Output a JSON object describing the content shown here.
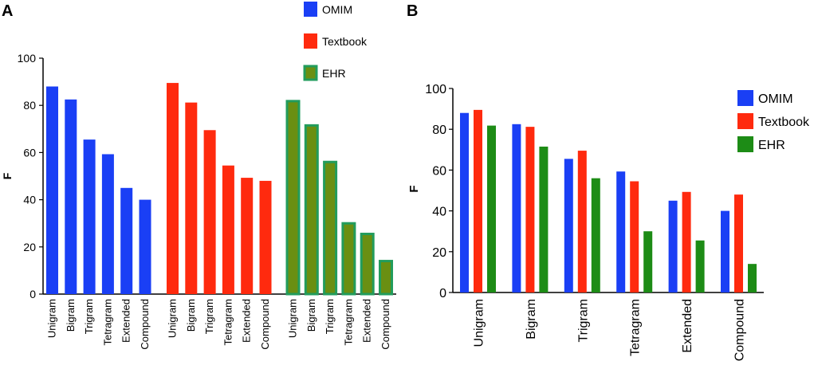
{
  "panels": {
    "a": "A",
    "b": "B"
  },
  "chart_data": [
    {
      "type": "bar",
      "panel": "A",
      "ylabel": "F",
      "ylim": [
        0,
        100
      ],
      "yticks": [
        0,
        20,
        40,
        60,
        80,
        100
      ],
      "categories": [
        "Unigram",
        "Bigram",
        "Trigram",
        "Tetragram",
        "Extended",
        "Compound"
      ],
      "series": [
        {
          "name": "OMIM",
          "color": "#1a3ff5",
          "values": [
            88,
            82.5,
            65.5,
            59.3,
            45,
            40
          ]
        },
        {
          "name": "Textbook",
          "color": "#ff2a0e",
          "values": [
            89.5,
            81.2,
            69.5,
            54.5,
            49.3,
            48
          ]
        },
        {
          "name": "EHR",
          "color": "#6a8f12",
          "border": "#229c5c",
          "values": [
            81.8,
            71.5,
            56,
            30,
            25.5,
            14
          ]
        }
      ],
      "legend": {
        "position": "top",
        "entries": [
          "OMIM",
          "Textbook",
          "EHR"
        ]
      }
    },
    {
      "type": "bar",
      "panel": "B",
      "ylabel": "F",
      "ylim": [
        0,
        100
      ],
      "yticks": [
        0,
        20,
        40,
        60,
        80,
        100
      ],
      "categories": [
        "Unigram",
        "Bigram",
        "Trigram",
        "Tetragram",
        "Extended",
        "Compound"
      ],
      "series": [
        {
          "name": "OMIM",
          "color": "#1a3ff5",
          "values": [
            88,
            82.5,
            65.5,
            59.3,
            45,
            40
          ]
        },
        {
          "name": "Textbook",
          "color": "#ff2a0e",
          "values": [
            89.5,
            81.2,
            69.5,
            54.5,
            49.3,
            48
          ]
        },
        {
          "name": "EHR",
          "color": "#1d8c16",
          "values": [
            81.8,
            71.5,
            56,
            30,
            25.5,
            14
          ]
        }
      ],
      "legend": {
        "position": "top-right",
        "entries": [
          "OMIM",
          "Textbook",
          "EHR"
        ]
      }
    }
  ]
}
